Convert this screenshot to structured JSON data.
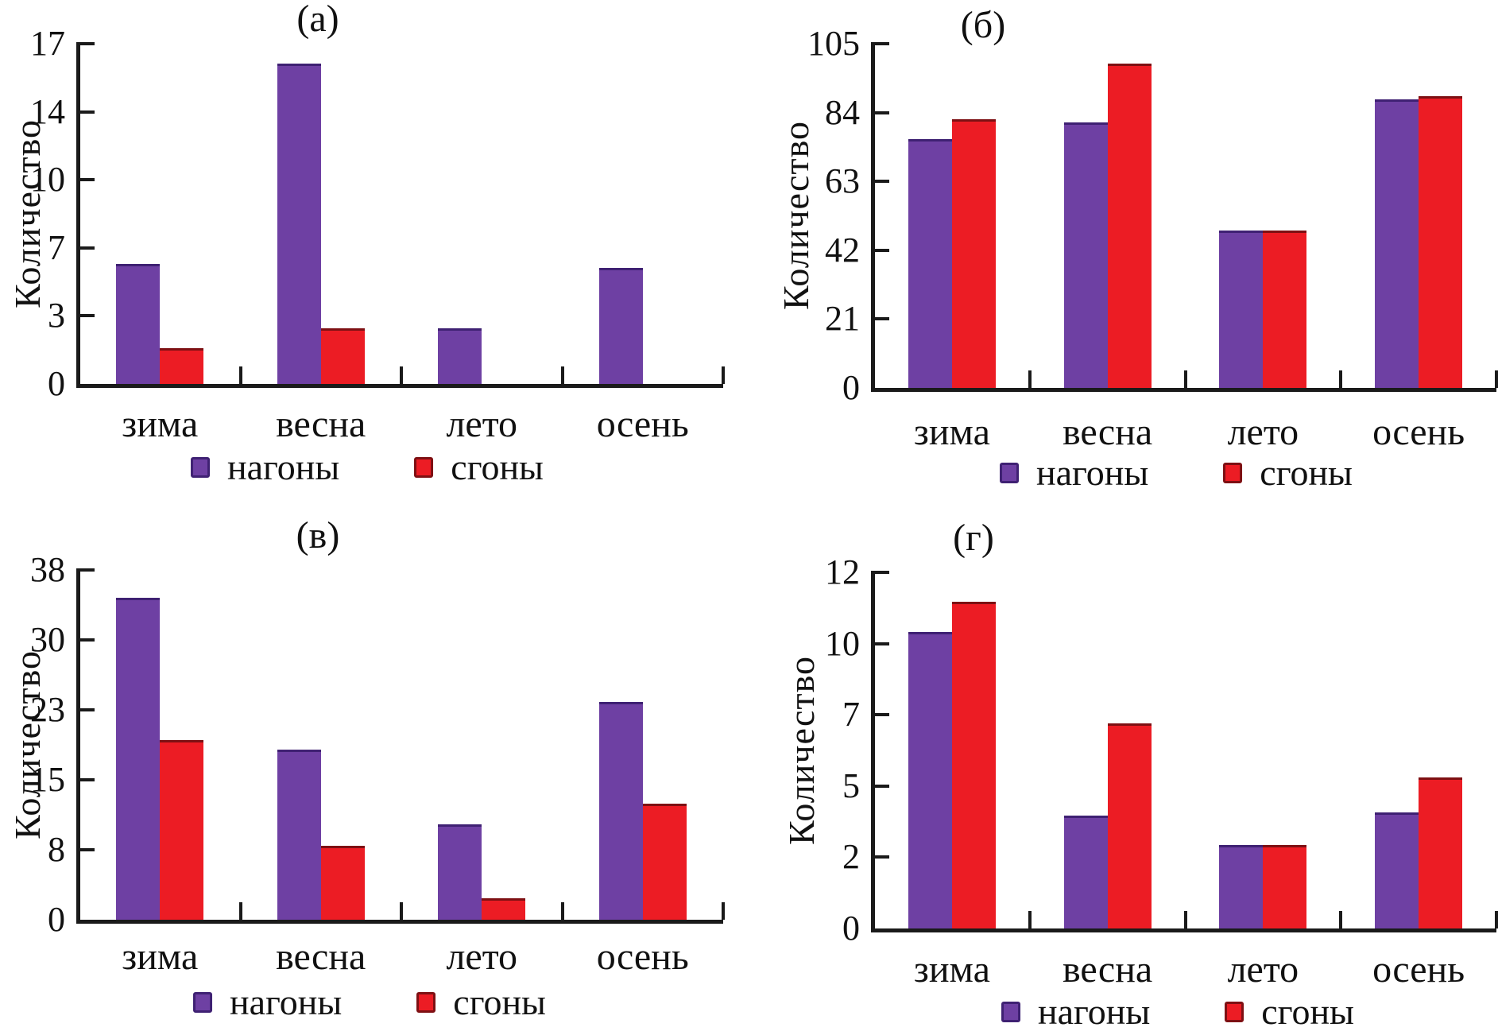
{
  "figure": {
    "ylabel": "Количество",
    "categories": [
      "зима",
      "весна",
      "лето",
      "осень"
    ],
    "legend": {
      "series1": "нагоны",
      "series2": "сгоны"
    },
    "colors": {
      "nagony_fill": "#6E40A3",
      "nagony_edge": "#3F2173",
      "sgony_fill": "#EC1C24",
      "sgony_edge": "#7E1013",
      "axis": "#1a1a1a"
    }
  },
  "chart_data": [
    {
      "type": "bar",
      "title": "(а)",
      "ylabel": "Количество",
      "categories": [
        "зима",
        "весна",
        "лето",
        "осень"
      ],
      "ylim": [
        0,
        17
      ],
      "ytick_labels": [
        "0",
        "3",
        "7",
        "10",
        "14",
        "17"
      ],
      "grid": false,
      "legend_position": "bottom",
      "series": [
        {
          "name": "нагоны",
          "values": [
            6,
            16,
            2.8,
            5.8
          ]
        },
        {
          "name": "сгоны",
          "values": [
            1.8,
            2.8,
            0,
            0
          ]
        }
      ]
    },
    {
      "type": "bar",
      "title": "(б)",
      "ylabel": "Количество",
      "categories": [
        "зима",
        "весна",
        "лето",
        "осень"
      ],
      "ylim": [
        0,
        105
      ],
      "ytick_labels": [
        "0",
        "21",
        "42",
        "63",
        "84",
        "105"
      ],
      "grid": false,
      "legend_position": "bottom",
      "series": [
        {
          "name": "нагоны",
          "values": [
            76,
            81,
            48,
            88
          ]
        },
        {
          "name": "сгоны",
          "values": [
            82,
            99,
            48,
            89
          ]
        }
      ]
    },
    {
      "type": "bar",
      "title": "(в)",
      "ylabel": "Количество",
      "categories": [
        "зима",
        "весна",
        "лето",
        "осень"
      ],
      "ylim": [
        0,
        38
      ],
      "ytick_labels": [
        "0",
        "8",
        "15",
        "23",
        "30",
        "38"
      ],
      "grid": false,
      "legend_position": "bottom",
      "series": [
        {
          "name": "нагоны",
          "values": [
            35,
            18.5,
            10.4,
            23.7
          ]
        },
        {
          "name": "сгоны",
          "values": [
            19.5,
            8,
            2.3,
            12.6
          ]
        }
      ]
    },
    {
      "type": "bar",
      "title": "(г)",
      "ylabel": "Количество",
      "categories": [
        "зима",
        "весна",
        "лето",
        "осень"
      ],
      "ylim": [
        0,
        12
      ],
      "ytick_labels": [
        "0",
        "2",
        "5",
        "7",
        "10",
        "12"
      ],
      "grid": false,
      "legend_position": "bottom",
      "series": [
        {
          "name": "нагоны",
          "values": [
            10,
            3.8,
            2.8,
            3.9
          ]
        },
        {
          "name": "сгоны",
          "values": [
            11,
            6.9,
            2.8,
            5.1
          ]
        }
      ]
    }
  ]
}
